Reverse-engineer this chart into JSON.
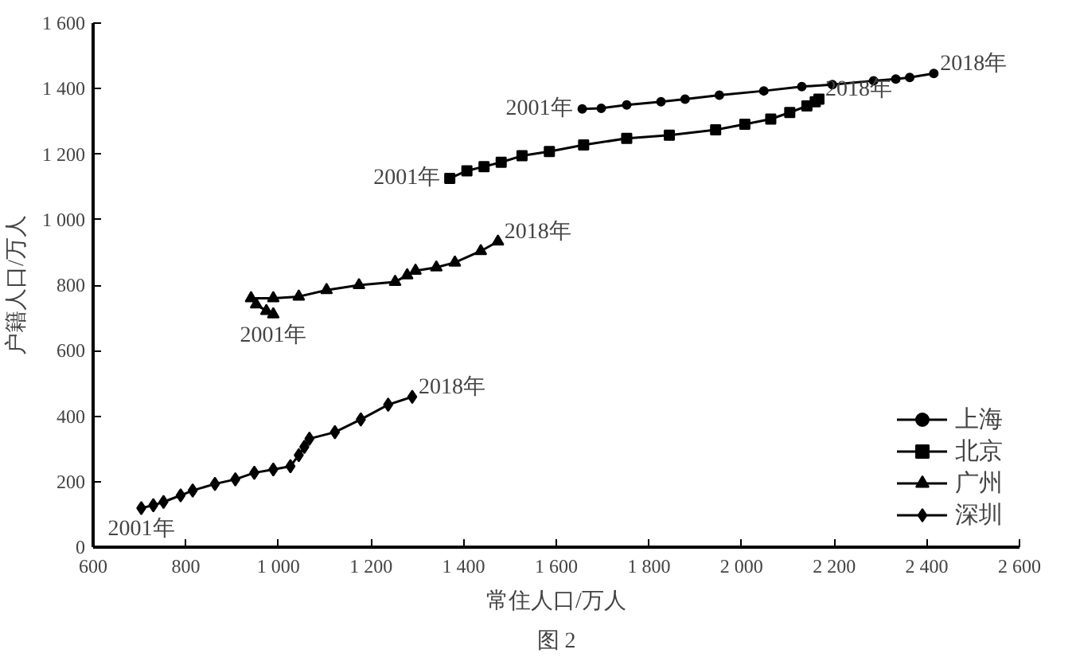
{
  "chart_data": {
    "type": "line",
    "xlabel": "常住人口/万人",
    "ylabel": "户籍人口/万人",
    "xlim": [
      600,
      2600
    ],
    "ylim": [
      0,
      1600
    ],
    "xticks": [
      600,
      800,
      {
        "value": 1000,
        "label": "1 000"
      },
      {
        "value": 1200,
        "label": "1 200"
      },
      {
        "value": 1400,
        "label": "1 400"
      },
      {
        "value": 1600,
        "label": "1 600"
      },
      {
        "value": 1800,
        "label": "1 800"
      },
      {
        "value": 2000,
        "label": "2 000"
      },
      {
        "value": 2200,
        "label": "2 200"
      },
      {
        "value": 2400,
        "label": "2 400"
      },
      {
        "value": 2600,
        "label": "2 600"
      }
    ],
    "yticks": [
      0,
      200,
      400,
      600,
      800,
      {
        "value": 1000,
        "label": "1 000"
      },
      {
        "value": 1200,
        "label": "1 200"
      },
      {
        "value": 1400,
        "label": "1 400"
      },
      {
        "value": 1600,
        "label": "1 600"
      }
    ],
    "grid": false,
    "legend": "bottom right",
    "series": [
      {
        "name": "上海",
        "color": "#000000",
        "marker": "circle",
        "x": [
          1656,
          1697,
          1752,
          1826,
          1878,
          1952,
          2048,
          2130,
          2196,
          2285,
          2333,
          2363,
          2415
        ],
        "values": [
          1338,
          1340,
          1350,
          1360,
          1368,
          1380,
          1393,
          1406,
          1412,
          1424,
          1429,
          1434,
          1446
        ]
      },
      {
        "name": "北京",
        "color": "#000000",
        "marker": "square",
        "x": [
          1370,
          1407,
          1444,
          1481,
          1526,
          1585,
          1659,
          1752,
          1844,
          1944,
          2007,
          2063,
          2104,
          2141,
          2159,
          2167
        ],
        "values": [
          1126,
          1149,
          1162,
          1175,
          1195,
          1208,
          1228,
          1248,
          1258,
          1274,
          1291,
          1307,
          1327,
          1347,
          1360,
          1368
        ]
      },
      {
        "name": "广州",
        "color": "#000000",
        "marker": "triangle",
        "x": [
          989,
          974,
          952,
          941,
          989,
          1044,
          1104,
          1174,
          1252,
          1278,
          1296,
          1341,
          1381,
          1437,
          1474
        ],
        "values": [
          711,
          721,
          741,
          760,
          760,
          765,
          785,
          800,
          810,
          830,
          844,
          854,
          869,
          904,
          933
        ]
      },
      {
        "name": "深圳",
        "color": "#000000",
        "marker": "diamond",
        "x": [
          704,
          730,
          752,
          789,
          815,
          863,
          907,
          948,
          989,
          1026,
          1044,
          1056,
          1067,
          1122,
          1178,
          1237,
          1289
        ],
        "values": [
          119,
          128,
          138,
          158,
          173,
          193,
          207,
          227,
          237,
          247,
          281,
          306,
          331,
          351,
          390,
          435,
          459
        ]
      }
    ],
    "annotations": [
      {
        "text": "2001年",
        "x": 1656,
        "y": 1338
      },
      {
        "text": "2018年",
        "x": 2415,
        "y": 1446
      },
      {
        "text": "2001年",
        "x": 1370,
        "y": 1126
      },
      {
        "text": "2018年",
        "x": 2167,
        "y": 1368
      },
      {
        "text": "2001年",
        "x": 989,
        "y": 711
      },
      {
        "text": "2018年",
        "x": 1474,
        "y": 933
      },
      {
        "text": "2001年",
        "x": 704,
        "y": 119
      },
      {
        "text": "2018年",
        "x": 1289,
        "y": 459
      },
      "图 2"
    ]
  }
}
